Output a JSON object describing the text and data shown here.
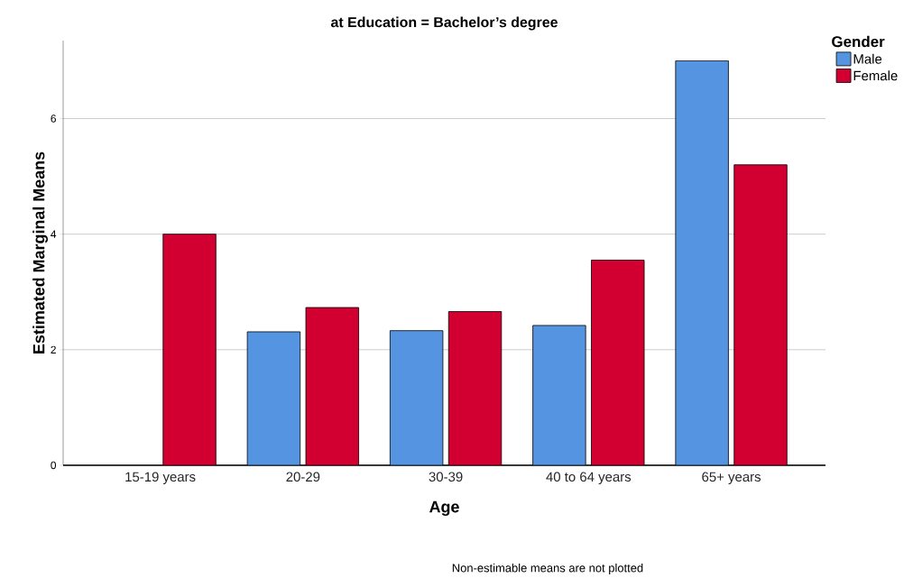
{
  "chart_data": {
    "type": "bar",
    "title": "at Education = Bachelor’s degree",
    "xlabel": "Age",
    "ylabel": "Estimated Marginal Means",
    "legend_title": "Gender",
    "categories": [
      "15-19 years",
      "20-29",
      "30-39",
      "40 to 64 years",
      "65+ years"
    ],
    "series": [
      {
        "name": "Male",
        "color": "#5594e0",
        "values": [
          null,
          2.31,
          2.33,
          2.42,
          7.0
        ]
      },
      {
        "name": "Female",
        "color": "#d20030",
        "values": [
          4.0,
          2.73,
          2.66,
          3.55,
          5.2
        ]
      }
    ],
    "ylim": [
      0,
      7.35
    ],
    "yticks": [
      0,
      2,
      4,
      6
    ],
    "grid": "y",
    "legend": "top right",
    "annotations": [
      "Non-estimable means are not plotted"
    ]
  }
}
